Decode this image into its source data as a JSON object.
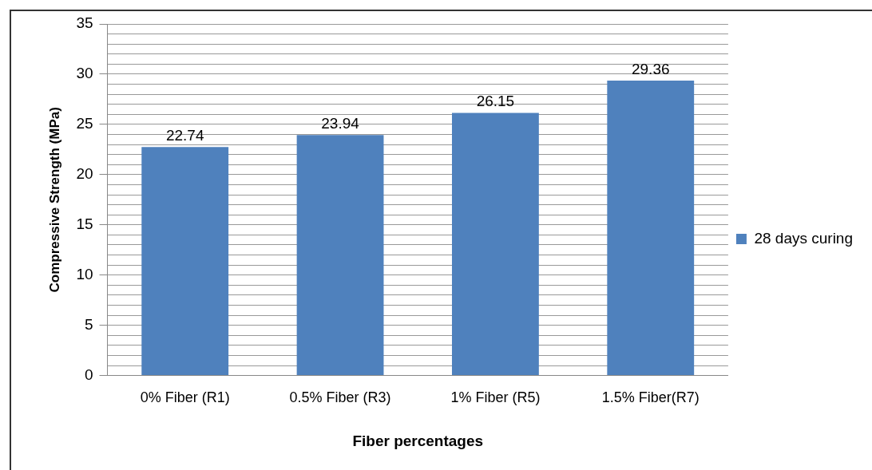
{
  "chart_data": {
    "type": "bar",
    "xlabel": "Fiber percentages",
    "ylabel": "Compressive Strength (MPa)",
    "categories": [
      "0% Fiber (R1)",
      "0.5% Fiber (R3)",
      "1% Fiber (R5)",
      "1.5% Fiber(R7)"
    ],
    "series": [
      {
        "name": "28 days curing",
        "color": "#4f81bd",
        "values": [
          22.74,
          23.94,
          26.15,
          29.36
        ]
      }
    ],
    "ylim": [
      0,
      35
    ],
    "yticks": [
      0,
      {
        "value": 1,
        "label": null
      },
      {
        "value": 2,
        "label": null
      },
      {
        "value": 3,
        "label": null
      },
      {
        "value": 4,
        "label": null
      },
      5,
      {
        "value": 6,
        "label": null
      },
      {
        "value": 7,
        "label": null
      },
      {
        "value": 8,
        "label": null
      },
      {
        "value": 9,
        "label": null
      },
      10,
      {
        "value": 11,
        "label": null
      },
      {
        "value": 12,
        "label": null
      },
      {
        "value": 13,
        "label": null
      },
      {
        "value": 14,
        "label": null
      },
      15,
      {
        "value": 16,
        "label": null
      },
      {
        "value": 17,
        "label": null
      },
      {
        "value": 18,
        "label": null
      },
      {
        "value": 19,
        "label": null
      },
      20,
      {
        "value": 21,
        "label": null
      },
      {
        "value": 22,
        "label": null
      },
      {
        "value": 23,
        "label": null
      },
      {
        "value": 24,
        "label": null
      },
      25,
      {
        "value": 26,
        "label": null
      },
      {
        "value": 27,
        "label": null
      },
      {
        "value": 28,
        "label": null
      },
      {
        "value": 29,
        "label": null
      },
      30,
      {
        "value": 31,
        "label": null
      },
      {
        "value": 32,
        "label": null
      },
      {
        "value": 33,
        "label": null
      },
      {
        "value": 34,
        "label": null
      },
      35
    ],
    "grid": "y",
    "legend": "right",
    "data_labels": true
  }
}
